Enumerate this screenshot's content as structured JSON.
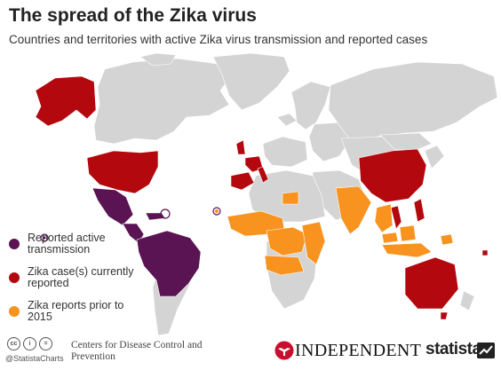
{
  "header": {
    "title": "The spread of the Zika virus",
    "subtitle": "Countries and territories with active Zika virus transmission and reported cases"
  },
  "colors": {
    "land": "#d4d4d4",
    "border": "#ffffff",
    "active_transmission": "#5a1353",
    "current_cases": "#b3080e",
    "reports_prior_2015": "#f7931e"
  },
  "legend": {
    "items": [
      {
        "label": "Reported active transmission",
        "color": "#5a1353"
      },
      {
        "label": "Zika case(s) currently reported",
        "color": "#b3080e"
      },
      {
        "label": "Zika reports prior to 2015",
        "color": "#f7931e"
      }
    ]
  },
  "footer": {
    "license_icons": [
      "cc",
      "i",
      "="
    ],
    "handle": "@StatistaCharts",
    "source": "Centers for Disease Control and Prevention",
    "publisher": "INDEPENDENT",
    "brand": "statista"
  }
}
